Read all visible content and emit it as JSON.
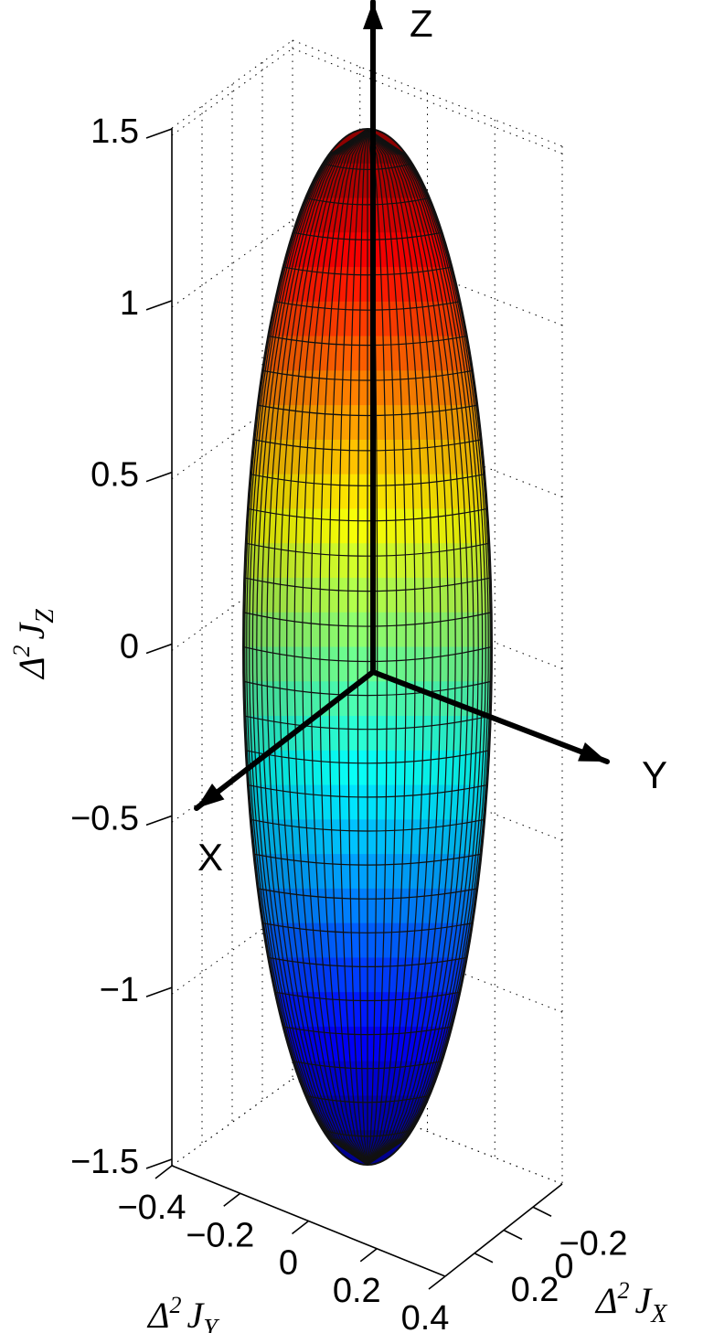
{
  "chart_data": {
    "type": "surface3d",
    "title": "",
    "shape": "ellipsoid",
    "colormap": "jet",
    "semi_axes": {
      "x": 0.35,
      "y": 0.35,
      "z": 1.5
    },
    "xlabel": "Δ² J_X",
    "ylabel": "Δ² J_Y",
    "zlabel": "Δ² J_Z",
    "xlabel_parts": {
      "delta": "Δ",
      "power": "2",
      "sym": "J",
      "sub": "X"
    },
    "ylabel_parts": {
      "delta": "Δ",
      "power": "2",
      "sym": "J",
      "sub": "Y"
    },
    "zlabel_parts": {
      "delta": "Δ",
      "power": "2",
      "sym": "J",
      "sub": "Z"
    },
    "z_ticks": [
      "1.5",
      "1",
      "0.5",
      "0",
      "−0.5",
      "−1",
      "−1.5"
    ],
    "z_tick_values": [
      1.5,
      1,
      0.5,
      0,
      -0.5,
      -1,
      -1.5
    ],
    "y_ticks": [
      "−0.4",
      "−0.2",
      "0",
      "0.2",
      "0.4"
    ],
    "x_ticks": [
      "−0.2",
      "0",
      "0.2"
    ],
    "zlim": [
      -1.5,
      1.5
    ],
    "ylim": [
      -0.4,
      0.4
    ],
    "xlim": [
      -0.3,
      0.3
    ],
    "grid": true,
    "arrows": {
      "x": "X",
      "y": "Y",
      "z": "Z"
    }
  }
}
